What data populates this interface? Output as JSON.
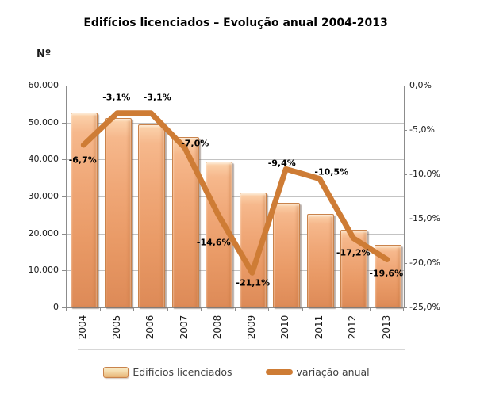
{
  "title": "Edifícios licenciados – Evolução anual 2004-2013",
  "left_axis_unit": "Nº",
  "legend": {
    "bar_label": "Edifícios licenciados",
    "line_label": "variação anual"
  },
  "chart_data": {
    "type": "combo",
    "title": "Edifícios licenciados – Evolução anual 2004-2013",
    "categories": [
      "2004",
      "2005",
      "2006",
      "2007",
      "2008",
      "2009",
      "2010",
      "2011",
      "2012",
      "2013"
    ],
    "series": [
      {
        "name": "Edifícios licenciados",
        "type": "bar",
        "axis": "left",
        "values": [
          52500,
          50900,
          49300,
          45900,
          39200,
          30900,
          28000,
          25100,
          20800,
          16700
        ]
      },
      {
        "name": "variação anual",
        "type": "line",
        "axis": "right",
        "values": [
          -6.7,
          -3.1,
          -3.1,
          -7.0,
          -14.6,
          -21.1,
          -9.4,
          -10.5,
          -17.2,
          -19.6
        ],
        "point_labels": [
          "-6,7%",
          "-3,1%",
          "-3,1%",
          "-7,0%",
          "-14,6%",
          "-21,1%",
          "-9,4%",
          "-10,5%",
          "-17,2%",
          "-19,6%"
        ]
      }
    ],
    "left_axis": {
      "label": "Nº",
      "min": 0,
      "max": 60000,
      "step": 10000,
      "tick_labels_top_to_bottom": [
        "60.000",
        "50.000",
        "40.000",
        "30.000",
        "20.000",
        "10.000",
        "0"
      ]
    },
    "right_axis": {
      "min": -25,
      "max": 0,
      "step": 5,
      "tick_labels_top_to_bottom": [
        "0,0%",
        "-5,0%",
        "-10,0%",
        "-15,0%",
        "-20,0%",
        "-25,0%"
      ]
    },
    "grid": true,
    "legend_position": "bottom",
    "colors": {
      "bar": "#EDA271",
      "bar_border": "#C9834C",
      "line": "#CE7C35",
      "gridline": "#C3C3C3",
      "axis": "#8C8C8C"
    }
  }
}
